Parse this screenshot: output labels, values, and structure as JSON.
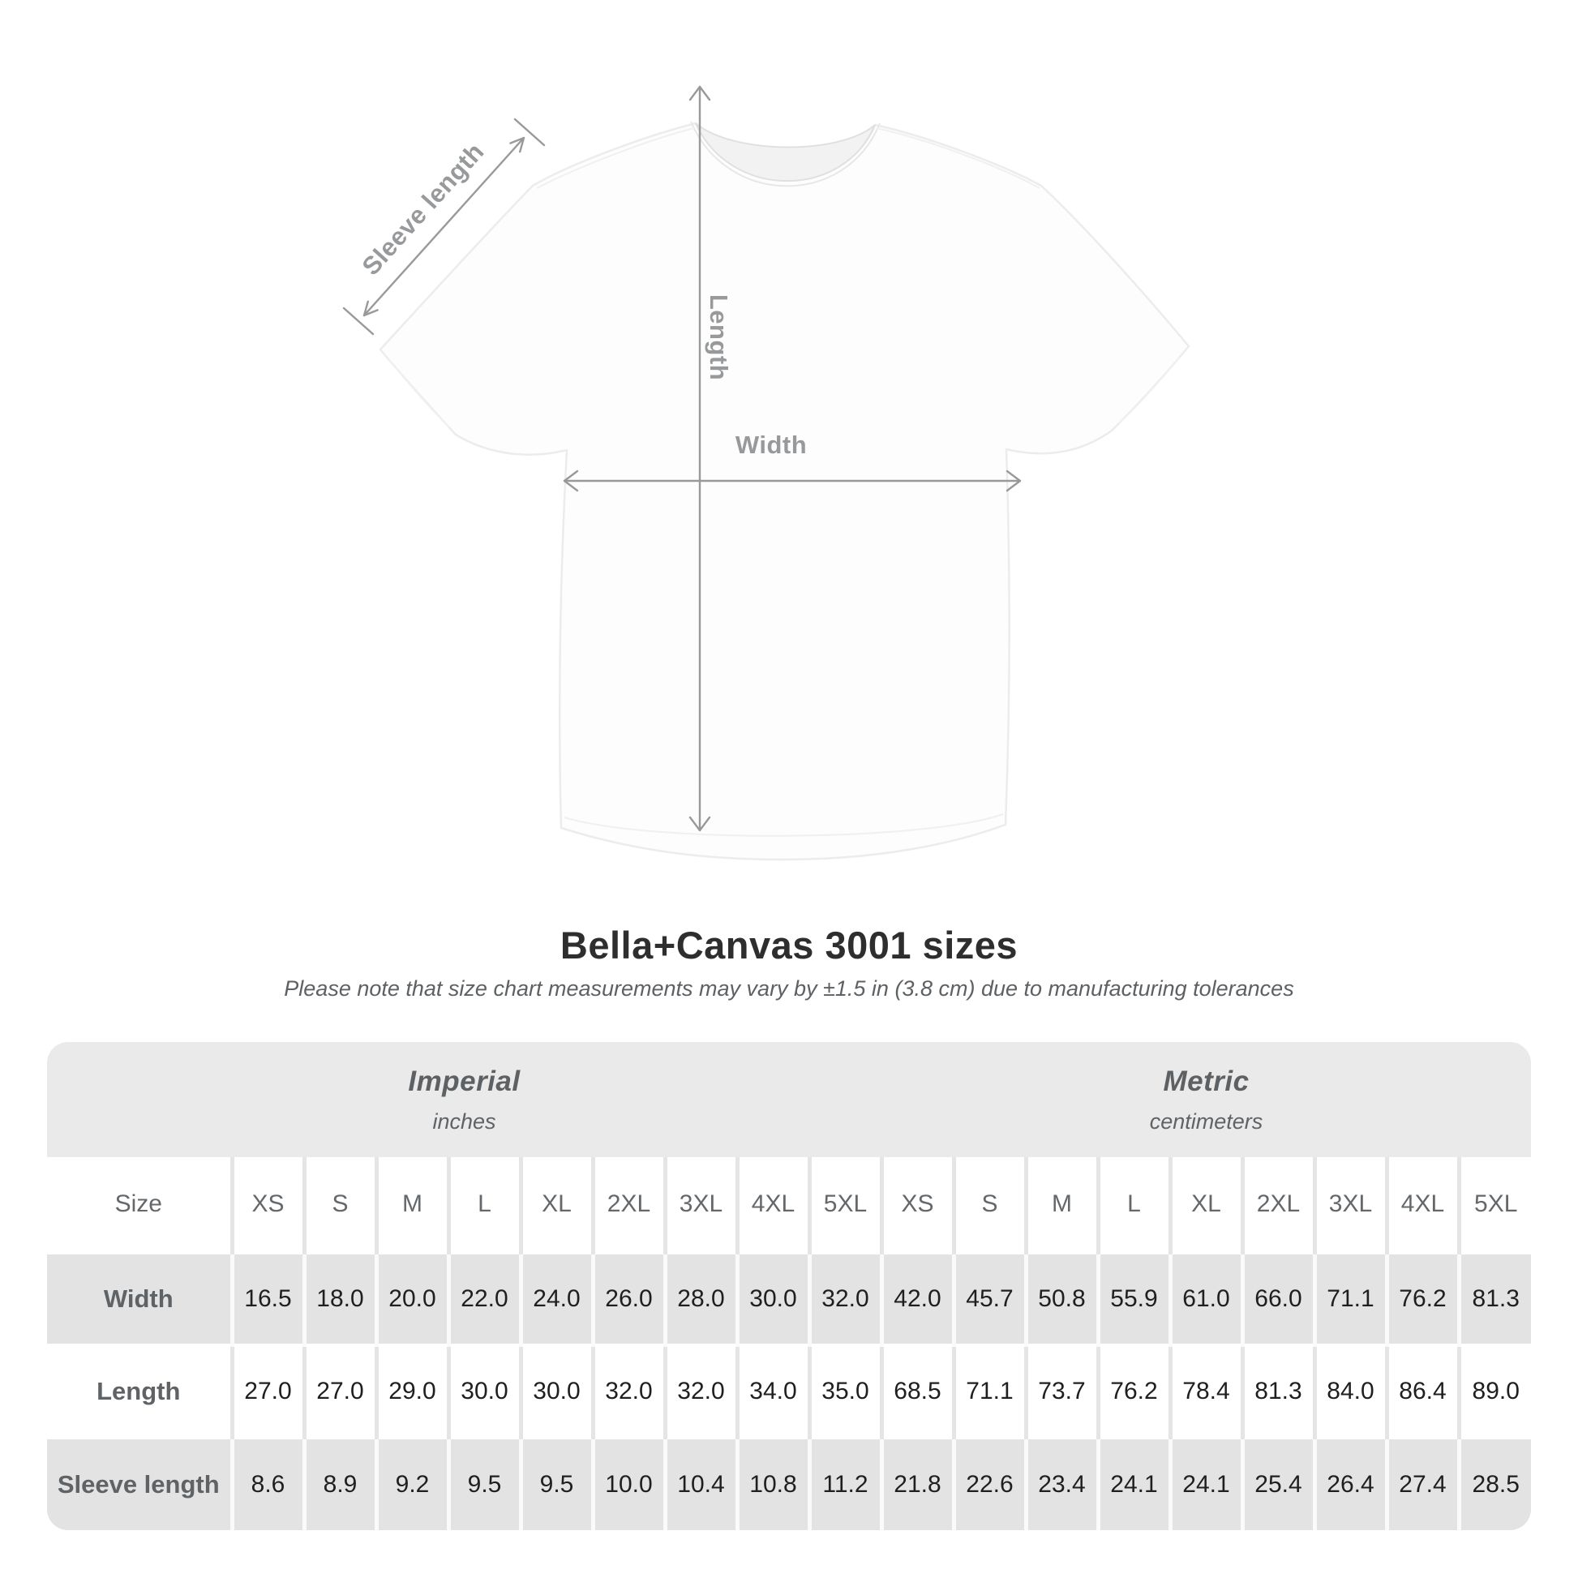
{
  "diagram": {
    "labels": {
      "sleeve_length": "Sleeve length",
      "length": "Length",
      "width": "Width"
    },
    "annotation_color": "#97999b",
    "shirt_fill": "#fdfdfd",
    "shirt_outline": "#ececec"
  },
  "title": {
    "heading": "Bella+Canvas 3001 sizes",
    "subtitle": "Please note that size chart measurements may vary by ±1.5 in (3.8 cm) due to manufacturing tolerances"
  },
  "size_table": {
    "groups": [
      {
        "label": "Imperial",
        "unit": "inches"
      },
      {
        "label": "Metric",
        "unit": "centimeters"
      }
    ],
    "size_header_label": "Size",
    "sizes": [
      "XS",
      "S",
      "M",
      "L",
      "XL",
      "2XL",
      "3XL",
      "4XL",
      "5XL"
    ],
    "rows": [
      {
        "label": "Width",
        "imperial": [
          "16.5",
          "18.0",
          "20.0",
          "22.0",
          "24.0",
          "26.0",
          "28.0",
          "30.0",
          "32.0"
        ],
        "metric": [
          "42.0",
          "45.7",
          "50.8",
          "55.9",
          "61.0",
          "66.0",
          "71.1",
          "76.2",
          "81.3"
        ]
      },
      {
        "label": "Length",
        "imperial": [
          "27.0",
          "27.0",
          "29.0",
          "30.0",
          "30.0",
          "32.0",
          "32.0",
          "34.0",
          "35.0"
        ],
        "metric": [
          "68.5",
          "71.1",
          "73.7",
          "76.2",
          "78.4",
          "81.3",
          "84.0",
          "86.4",
          "89.0"
        ]
      },
      {
        "label": "Sleeve length",
        "imperial": [
          "8.6",
          "8.9",
          "9.2",
          "9.5",
          "9.5",
          "10.0",
          "10.4",
          "10.8",
          "11.2"
        ],
        "metric": [
          "21.8",
          "22.6",
          "23.4",
          "24.1",
          "24.1",
          "25.4",
          "26.4",
          "27.4",
          "28.5"
        ]
      }
    ],
    "colors": {
      "card_bg": "#eaeaea",
      "gray_row": "#e3e3e3",
      "white_row": "#ffffff",
      "label_text": "#5f6366",
      "value_text": "#1f1f1f"
    }
  },
  "chart_data": {
    "type": "table",
    "title": "Bella+Canvas 3001 sizes",
    "note": "Please note that size chart measurements may vary by ±1.5 in (3.8 cm) due to manufacturing tolerances",
    "column_groups": [
      "Imperial (inches)",
      "Metric (centimeters)"
    ],
    "columns": [
      "Size",
      "XS",
      "S",
      "M",
      "L",
      "XL",
      "2XL",
      "3XL",
      "4XL",
      "5XL",
      "XS",
      "S",
      "M",
      "L",
      "XL",
      "2XL",
      "3XL",
      "4XL",
      "5XL"
    ],
    "rows": [
      [
        "Width",
        16.5,
        18.0,
        20.0,
        22.0,
        24.0,
        26.0,
        28.0,
        30.0,
        32.0,
        42.0,
        45.7,
        50.8,
        55.9,
        61.0,
        66.0,
        71.1,
        76.2,
        81.3
      ],
      [
        "Length",
        27.0,
        27.0,
        29.0,
        30.0,
        30.0,
        32.0,
        32.0,
        34.0,
        35.0,
        68.5,
        71.1,
        73.7,
        76.2,
        78.4,
        81.3,
        84.0,
        86.4,
        89.0
      ],
      [
        "Sleeve length",
        8.6,
        8.9,
        9.2,
        9.5,
        9.5,
        10.0,
        10.4,
        10.8,
        11.2,
        21.8,
        22.6,
        23.4,
        24.1,
        24.1,
        25.4,
        26.4,
        27.4,
        28.5
      ]
    ]
  }
}
